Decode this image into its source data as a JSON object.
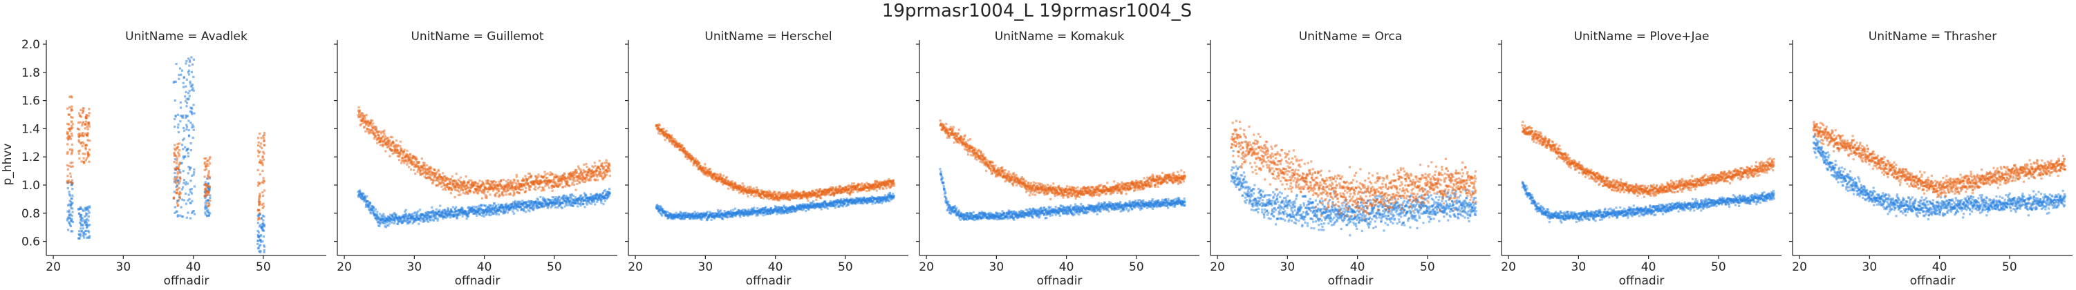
{
  "chart_data": {
    "type": "scatter",
    "suptitle": "19prmasr1004_L 19prmasr1004_S",
    "xlabel": "offnadir",
    "ylabel": "p_hhvv",
    "xlim": [
      19,
      59
    ],
    "ylim": [
      0.5,
      2.0
    ],
    "xticks": [
      "20",
      "30",
      "40",
      "50"
    ],
    "yticks": [
      "0.6",
      "0.8",
      "1.0",
      "1.2",
      "1.4",
      "1.6",
      "1.8",
      "2.0"
    ],
    "colors": {
      "orange_series": "#E8651A",
      "blue_series": "#2A82DF"
    },
    "panels": [
      {
        "title": "UnitName = Avadlek",
        "orange": {
          "pts": [
            [
              22.2,
              1.5
            ],
            [
              22.6,
              1.45
            ],
            [
              23.5,
              1.4
            ],
            [
              24.2,
              1.35
            ],
            [
              24.6,
              1.28
            ],
            [
              25.0,
              1.22
            ]
          ],
          "band_x": [
            [
              22.0,
              22.8
            ],
            [
              23.6,
              25.2
            ],
            [
              37.2,
              38.2
            ],
            [
              41.6,
              42.4
            ],
            [
              49.2,
              50.2
            ]
          ],
          "band_y": [
            [
              1.0,
              1.65
            ],
            [
              1.15,
              1.55
            ],
            [
              0.85,
              1.3
            ],
            [
              0.85,
              1.2
            ],
            [
              0.75,
              1.38
            ]
          ]
        },
        "blue": {
          "band_x": [
            [
              22.0,
              22.8
            ],
            [
              23.6,
              25.2
            ],
            [
              37.2,
              40.2
            ],
            [
              41.6,
              42.4
            ],
            [
              49.2,
              50.2
            ]
          ],
          "band_y": [
            [
              0.65,
              1.05
            ],
            [
              0.62,
              0.85
            ],
            [
              0.75,
              1.92
            ],
            [
              0.78,
              1.05
            ],
            [
              0.52,
              0.8
            ]
          ]
        }
      },
      {
        "title": "UnitName = Guillemot",
        "orange": {
          "x": [
            22,
            25,
            30,
            35,
            40,
            45,
            50,
            55,
            58
          ],
          "y": [
            1.5,
            1.35,
            1.15,
            1.0,
            0.98,
            1.0,
            1.03,
            1.08,
            1.12
          ],
          "spread": 0.06
        },
        "blue": {
          "x": [
            22,
            24,
            25,
            30,
            35,
            40,
            45,
            50,
            55,
            58
          ],
          "y": [
            0.95,
            0.82,
            0.75,
            0.77,
            0.8,
            0.82,
            0.85,
            0.88,
            0.9,
            0.93
          ],
          "spread": 0.04
        }
      },
      {
        "title": "UnitName = Herschel",
        "orange": {
          "x": [
            23,
            25,
            30,
            35,
            40,
            45,
            50,
            55,
            57
          ],
          "y": [
            1.42,
            1.33,
            1.1,
            0.97,
            0.92,
            0.93,
            0.97,
            1.0,
            1.02
          ],
          "spread": 0.03
        },
        "blue": {
          "x": [
            23,
            25,
            30,
            35,
            40,
            45,
            50,
            55,
            57
          ],
          "y": [
            0.84,
            0.78,
            0.78,
            0.8,
            0.82,
            0.85,
            0.88,
            0.9,
            0.92
          ],
          "spread": 0.025
        }
      },
      {
        "title": "UnitName = Komakuk",
        "orange": {
          "x": [
            22,
            25,
            30,
            35,
            40,
            45,
            50,
            55,
            57
          ],
          "y": [
            1.42,
            1.32,
            1.1,
            0.98,
            0.95,
            0.96,
            1.0,
            1.05,
            1.06
          ],
          "spread": 0.04
        },
        "blue": {
          "x": [
            22,
            23,
            25,
            30,
            35,
            40,
            45,
            50,
            55,
            57
          ],
          "y": [
            1.1,
            0.85,
            0.78,
            0.78,
            0.8,
            0.82,
            0.84,
            0.86,
            0.87,
            0.88
          ],
          "spread": 0.03
        }
      },
      {
        "title": "UnitName = Orca",
        "orange": {
          "x": [
            22,
            25,
            30,
            35,
            40,
            45,
            50,
            55,
            57
          ],
          "y": [
            1.35,
            1.25,
            1.1,
            0.98,
            0.92,
            0.95,
            1.0,
            1.02,
            1.0
          ],
          "spread": 0.14
        },
        "blue": {
          "x": [
            22,
            25,
            30,
            35,
            40,
            45,
            50,
            55,
            57
          ],
          "y": [
            1.1,
            0.9,
            0.82,
            0.8,
            0.8,
            0.82,
            0.84,
            0.85,
            0.84
          ],
          "spread": 0.1
        }
      },
      {
        "title": "UnitName = Plove+Jae",
        "orange": {
          "x": [
            22,
            25,
            30,
            35,
            40,
            45,
            50,
            55,
            58
          ],
          "y": [
            1.4,
            1.32,
            1.12,
            1.0,
            0.96,
            1.0,
            1.05,
            1.1,
            1.15
          ],
          "spread": 0.04
        },
        "blue": {
          "x": [
            22,
            24,
            26,
            30,
            35,
            40,
            45,
            50,
            55,
            58
          ],
          "y": [
            1.0,
            0.85,
            0.78,
            0.78,
            0.8,
            0.82,
            0.85,
            0.88,
            0.9,
            0.92
          ],
          "spread": 0.03
        }
      },
      {
        "title": "UnitName = Thrasher",
        "orange": {
          "x": [
            22,
            25,
            30,
            35,
            40,
            45,
            50,
            55,
            58
          ],
          "y": [
            1.4,
            1.32,
            1.2,
            1.05,
            0.98,
            1.02,
            1.08,
            1.12,
            1.15
          ],
          "spread": 0.06
        },
        "blue": {
          "x": [
            22,
            25,
            30,
            35,
            40,
            45,
            50,
            55,
            58
          ],
          "y": [
            1.3,
            1.1,
            0.92,
            0.85,
            0.84,
            0.86,
            0.87,
            0.88,
            0.9
          ],
          "spread": 0.06
        }
      }
    ]
  }
}
